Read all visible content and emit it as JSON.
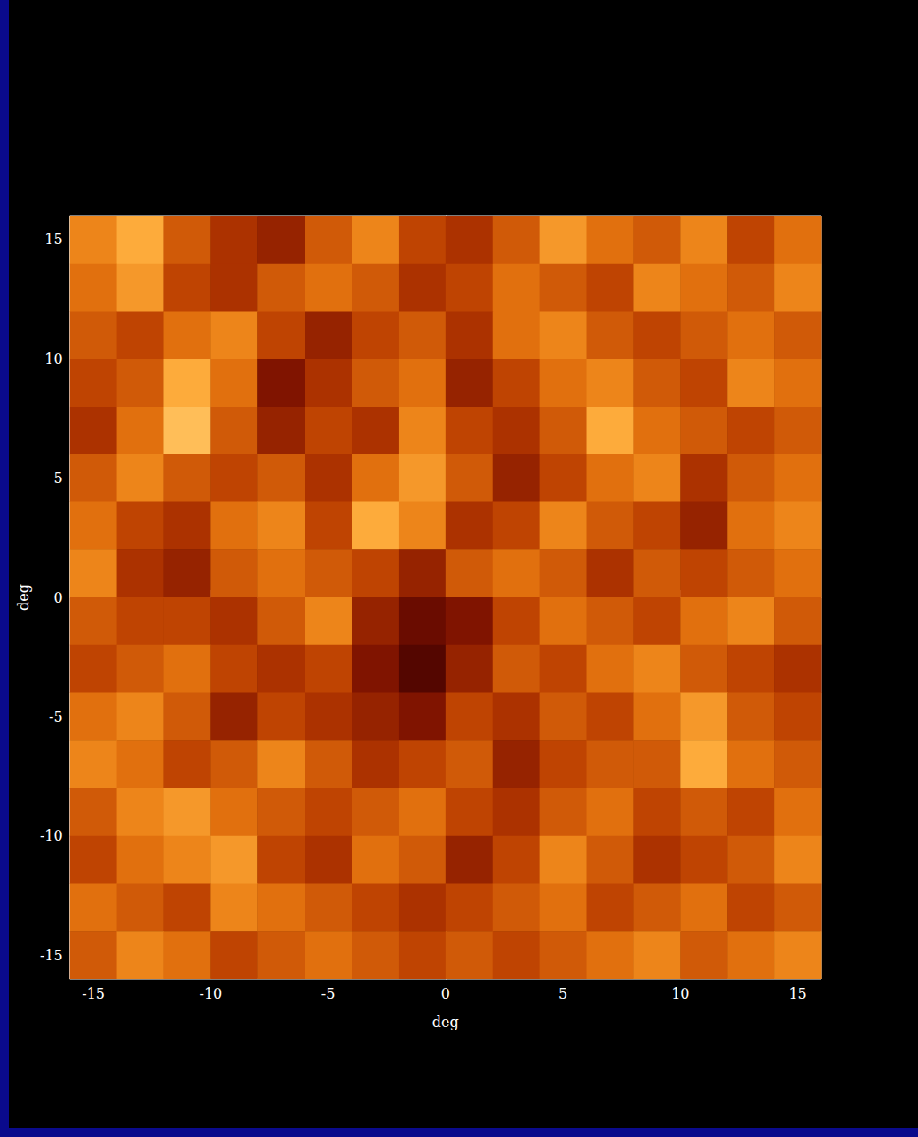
{
  "chart_data": {
    "type": "heatmap",
    "x_label": "deg",
    "y_label": "deg",
    "xlim": [
      -16,
      16
    ],
    "ylim": [
      -16,
      16
    ],
    "xticks": [
      -15,
      -10,
      -5,
      0,
      5,
      10,
      15
    ],
    "yticks": [
      -15,
      -10,
      -5,
      0,
      5,
      10,
      15
    ],
    "grid": false,
    "color_range": [
      0,
      1
    ],
    "cells": [
      [
        0.6,
        0.7,
        0.5,
        0.4,
        0.35,
        0.5,
        0.6,
        0.45,
        0.4,
        0.5,
        0.65,
        0.55,
        0.5,
        0.6,
        0.45,
        0.55
      ],
      [
        0.55,
        0.65,
        0.45,
        0.4,
        0.5,
        0.55,
        0.5,
        0.4,
        0.45,
        0.55,
        0.5,
        0.45,
        0.6,
        0.55,
        0.5,
        0.6
      ],
      [
        0.5,
        0.45,
        0.55,
        0.6,
        0.45,
        0.35,
        0.45,
        0.5,
        0.4,
        0.55,
        0.6,
        0.5,
        0.45,
        0.5,
        0.55,
        0.5
      ],
      [
        0.45,
        0.5,
        0.7,
        0.55,
        0.3,
        0.4,
        0.5,
        0.55,
        0.35,
        0.45,
        0.55,
        0.6,
        0.5,
        0.45,
        0.6,
        0.55
      ],
      [
        0.4,
        0.55,
        0.75,
        0.5,
        0.35,
        0.45,
        0.4,
        0.6,
        0.45,
        0.4,
        0.5,
        0.7,
        0.55,
        0.5,
        0.45,
        0.5
      ],
      [
        0.5,
        0.6,
        0.5,
        0.45,
        0.5,
        0.4,
        0.55,
        0.65,
        0.5,
        0.35,
        0.45,
        0.55,
        0.6,
        0.4,
        0.5,
        0.55
      ],
      [
        0.55,
        0.45,
        0.4,
        0.55,
        0.6,
        0.45,
        0.7,
        0.6,
        0.4,
        0.45,
        0.6,
        0.5,
        0.45,
        0.35,
        0.55,
        0.6
      ],
      [
        0.6,
        0.4,
        0.35,
        0.5,
        0.55,
        0.5,
        0.45,
        0.35,
        0.5,
        0.55,
        0.5,
        0.4,
        0.5,
        0.45,
        0.5,
        0.55
      ],
      [
        0.5,
        0.45,
        0.45,
        0.4,
        0.5,
        0.6,
        0.35,
        0.25,
        0.3,
        0.45,
        0.55,
        0.5,
        0.45,
        0.55,
        0.6,
        0.5
      ],
      [
        0.45,
        0.5,
        0.55,
        0.45,
        0.4,
        0.45,
        0.3,
        0.2,
        0.35,
        0.5,
        0.45,
        0.55,
        0.6,
        0.5,
        0.45,
        0.4
      ],
      [
        0.55,
        0.6,
        0.5,
        0.35,
        0.45,
        0.4,
        0.35,
        0.3,
        0.45,
        0.4,
        0.5,
        0.45,
        0.55,
        0.65,
        0.5,
        0.45
      ],
      [
        0.6,
        0.55,
        0.45,
        0.5,
        0.6,
        0.5,
        0.4,
        0.45,
        0.5,
        0.35,
        0.45,
        0.5,
        0.5,
        0.7,
        0.55,
        0.5
      ],
      [
        0.5,
        0.6,
        0.65,
        0.55,
        0.5,
        0.45,
        0.5,
        0.55,
        0.45,
        0.4,
        0.5,
        0.55,
        0.45,
        0.5,
        0.45,
        0.55
      ],
      [
        0.45,
        0.55,
        0.6,
        0.65,
        0.45,
        0.4,
        0.55,
        0.5,
        0.35,
        0.45,
        0.6,
        0.5,
        0.4,
        0.45,
        0.5,
        0.6
      ],
      [
        0.55,
        0.5,
        0.45,
        0.6,
        0.55,
        0.5,
        0.45,
        0.4,
        0.45,
        0.5,
        0.55,
        0.45,
        0.5,
        0.55,
        0.45,
        0.5
      ],
      [
        0.5,
        0.6,
        0.55,
        0.45,
        0.5,
        0.55,
        0.5,
        0.45,
        0.5,
        0.45,
        0.5,
        0.55,
        0.6,
        0.5,
        0.55,
        0.6
      ]
    ]
  }
}
